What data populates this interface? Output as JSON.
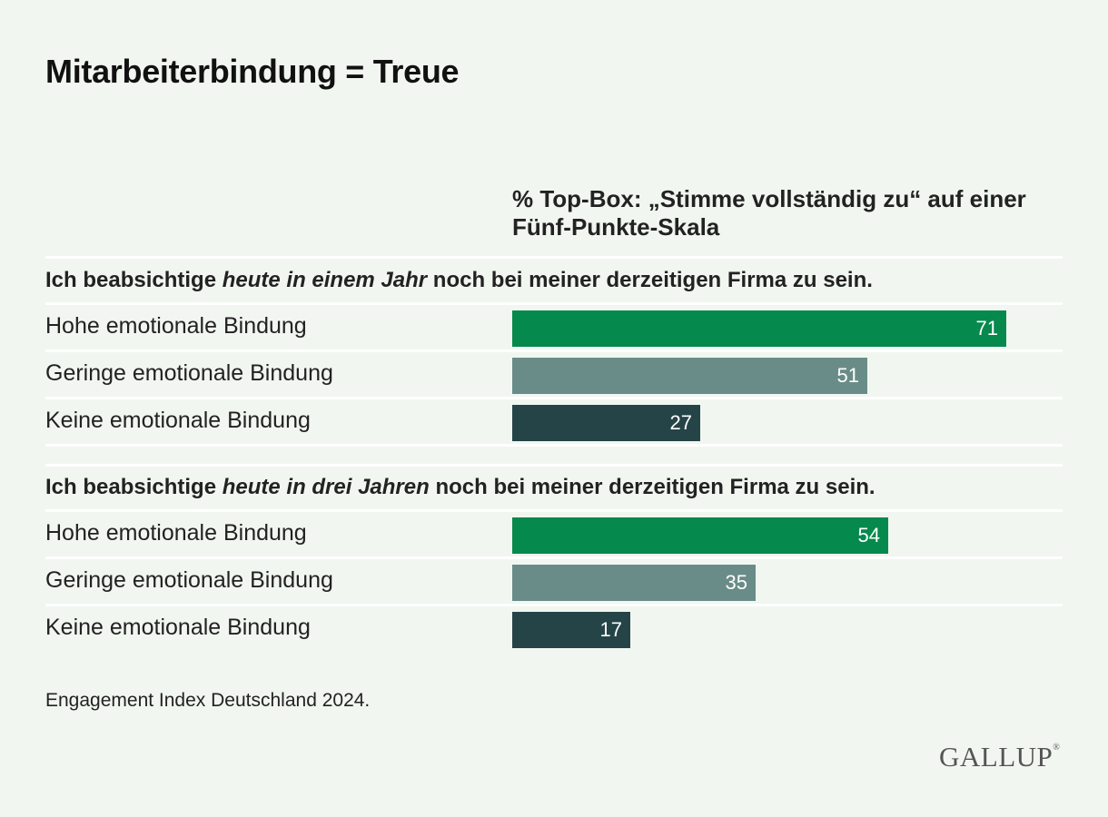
{
  "title": "Mitarbeiterbindung = Treue",
  "subtitle": "% Top-Box: „Stimme vollständig zu“ auf einer Fünf-Punkte-Skala",
  "source": "Engagement Index Deutschland 2024.",
  "logo": "GALLUP",
  "colors": {
    "hohe": "#06894d",
    "geringe": "#6a8c88",
    "keine": "#254448"
  },
  "chart_data": {
    "type": "bar",
    "orientation": "horizontal",
    "title": "Mitarbeiterbindung = Treue",
    "subtitle": "% Top-Box: „Stimme vollständig zu“ auf einer Fünf-Punkte-Skala",
    "xlim": [
      0,
      100
    ],
    "grid": false,
    "groups": [
      {
        "heading": {
          "before": "Ich beabsichtige ",
          "emphasis": "heute in einem Jahr",
          "after": " noch bei meiner derzeitigen Firma zu sein."
        },
        "categories": [
          "Hohe emotionale Bindung",
          "Geringe emotionale Bindung",
          "Keine emotionale Bindung"
        ],
        "values": [
          71,
          51,
          27
        ]
      },
      {
        "heading": {
          "before": "Ich beabsichtige ",
          "emphasis": "heute in drei Jahren",
          "after": " noch bei meiner derzeitigen Firma zu sein."
        },
        "categories": [
          "Hohe emotionale Bindung",
          "Geringe emotionale Bindung",
          "Keine emotionale Bindung"
        ],
        "values": [
          54,
          35,
          17
        ]
      }
    ]
  }
}
